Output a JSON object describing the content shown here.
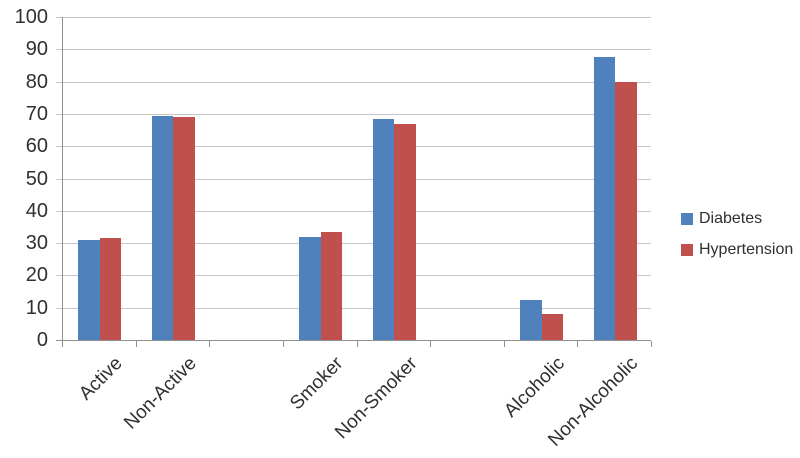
{
  "chart_data": {
    "type": "bar",
    "title": "",
    "xlabel": "",
    "ylabel": "",
    "categories": [
      "Active",
      "Non-Active",
      "Smoker",
      "Non-Smoker",
      "Alcoholic",
      "Non-Alcoholic"
    ],
    "series": [
      {
        "name": "Diabetes",
        "color": "#4F81BD",
        "values": [
          31,
          69.5,
          32,
          68.5,
          12.5,
          87.5
        ]
      },
      {
        "name": "Hypertension",
        "color": "#C0504D",
        "values": [
          31.5,
          69,
          33.5,
          67,
          8,
          80
        ]
      }
    ],
    "ylim": [
      0,
      100
    ],
    "ytick_step": 10,
    "ytick_labels": [
      "0",
      "10",
      "20",
      "30",
      "40",
      "50",
      "60",
      "70",
      "80",
      "90",
      "100"
    ],
    "grid": "horizontal-only",
    "legend_position": "right",
    "category_gaps_after": [
      "Non-Active",
      "Non-Smoker"
    ]
  },
  "colors": {
    "background": "#FFFFFF",
    "gridline": "#C6C6C6",
    "axis": "#8F8F8F",
    "text": "#303030"
  }
}
